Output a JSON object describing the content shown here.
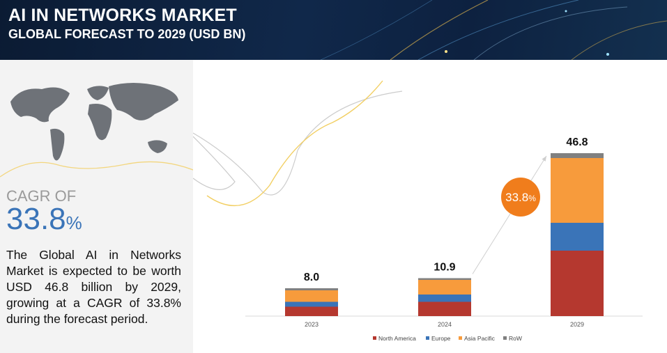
{
  "header": {
    "title": "AI IN NETWORKS  MARKET",
    "subtitle": "GLOBAL FORECAST TO 2029 (USD BN)"
  },
  "left_panel": {
    "cagr_label": "CAGR OF",
    "cagr_value": "33.8",
    "cagr_unit": "%",
    "description": "The Global AI in Networks Market is expected to be worth USD 46.8 billion by 2029, growing at a CAGR of 33.8% during the forecast period."
  },
  "chart_data": {
    "type": "bar",
    "stacked": true,
    "categories": [
      "2023",
      "2024",
      "2029"
    ],
    "totals": [
      "8.0",
      "10.9",
      "46.8"
    ],
    "total_values": [
      8.0,
      10.9,
      46.8
    ],
    "series": [
      {
        "name": "North America",
        "color": "#b5382f",
        "values": [
          2.7,
          4.1,
          18.8
        ]
      },
      {
        "name": "Europe",
        "color": "#3a74b8",
        "values": [
          1.4,
          2.1,
          8.0
        ]
      },
      {
        "name": "Asia Pacific",
        "color": "#f79b3c",
        "values": [
          3.3,
          4.2,
          18.6
        ]
      },
      {
        "name": "RoW",
        "color": "#808080",
        "values": [
          0.6,
          0.5,
          1.4
        ]
      }
    ],
    "growth_badge": {
      "value": "33.8",
      "unit": "%",
      "color": "#f07d1c"
    },
    "legend_position": "bottom",
    "grid": false
  }
}
